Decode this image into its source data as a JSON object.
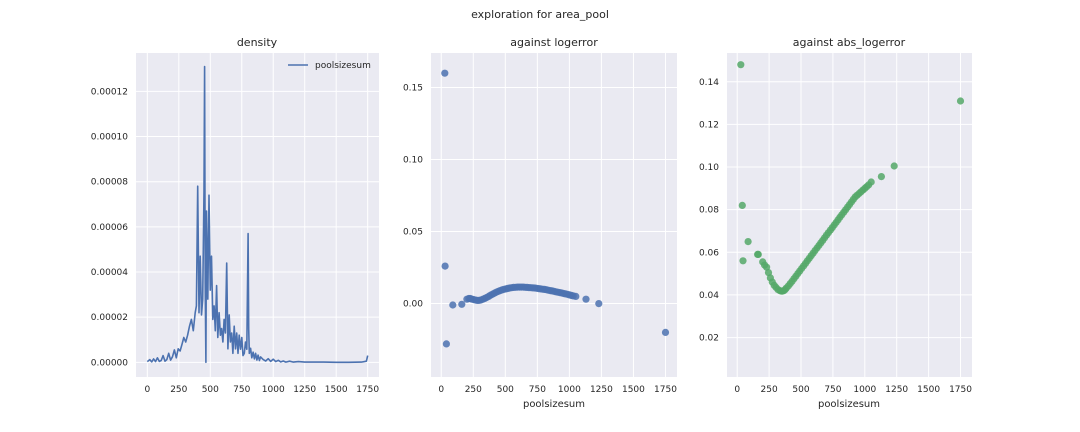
{
  "figure": {
    "suptitle": "exploration for area_pool"
  },
  "chart_data": [
    {
      "type": "line",
      "title": "density",
      "xlabel": "",
      "ylabel": "",
      "xlim": [
        -90,
        1840
      ],
      "ylim": [
        -6.5e-06,
        0.000137
      ],
      "xticks": [
        0,
        250,
        500,
        750,
        1000,
        1250,
        1500,
        1750
      ],
      "yticks": [
        0,
        2e-05,
        4e-05,
        6e-05,
        8e-05,
        0.0001,
        0.00012
      ],
      "ytick_labels": [
        "0.00000",
        "0.00002",
        "0.00004",
        "0.00006",
        "0.00008",
        "0.00010",
        "0.00012"
      ],
      "grid": true,
      "legend": "top-right",
      "series": [
        {
          "name": "poolsizesum",
          "color": "#4c72b0",
          "x": [
            0,
            20,
            35,
            50,
            65,
            80,
            95,
            110,
            125,
            140,
            155,
            170,
            185,
            200,
            215,
            230,
            245,
            260,
            275,
            290,
            305,
            320,
            335,
            350,
            365,
            380,
            390,
            400,
            410,
            420,
            430,
            440,
            450,
            455,
            460,
            465,
            470,
            480,
            490,
            500,
            510,
            520,
            530,
            540,
            550,
            560,
            570,
            580,
            590,
            600,
            610,
            620,
            630,
            640,
            650,
            660,
            670,
            680,
            690,
            700,
            710,
            720,
            730,
            740,
            750,
            760,
            770,
            780,
            790,
            800,
            805,
            810,
            820,
            830,
            840,
            850,
            860,
            870,
            880,
            890,
            900,
            920,
            940,
            960,
            980,
            1000,
            1020,
            1040,
            1060,
            1080,
            1100,
            1130,
            1160,
            1200,
            1250,
            1300,
            1400,
            1500,
            1600,
            1700,
            1740,
            1750
          ],
          "y": [
            3e-07,
            1.2e-06,
            2e-07,
            1.5e-06,
            3e-07,
            2e-06,
            4e-07,
            8e-07,
            3e-06,
            5e-07,
            1.2e-06,
            4e-06,
            1e-06,
            2.5e-06,
            5.5e-06,
            2e-06,
            6e-06,
            5e-06,
            8e-06,
            1.1e-05,
            9e-06,
            1.2e-05,
            1.6e-05,
            1.9e-05,
            1.4e-05,
            2.2e-05,
            2.5e-05,
            7.8e-05,
            2.2e-05,
            4.7e-05,
            2.1e-05,
            2.8e-05,
            7.6e-05,
            0.000131,
            3.5e-05,
            0.0,
            6.7e-05,
            2.8e-05,
            7.4e-05,
            3.2e-05,
            4.7e-05,
            1.9e-05,
            2.5e-05,
            1.4e-05,
            3.4e-05,
            1.1e-05,
            2.2e-05,
            1.2e-05,
            1.5e-05,
            9e-06,
            1.9e-05,
            1.3e-05,
            4.4e-05,
            6e-06,
            2.1e-05,
            9e-06,
            1.3e-05,
            4e-06,
            1.6e-05,
            6e-06,
            1.3e-05,
            4e-06,
            1.2e-05,
            5.8e-06,
            1.1e-05,
            3e-06,
            4e-06,
            9e-06,
            5.8e-06,
            5.7e-05,
            1.5e-05,
            4e-06,
            6.2e-06,
            2e-06,
            4.5e-06,
            1.5e-06,
            4e-06,
            1e-06,
            3.2e-06,
            8e-07,
            2.4e-06,
            1.2e-06,
            6e-07,
            1.6e-06,
            4e-07,
            1.4e-06,
            3e-07,
            9e-07,
            2e-07,
            6e-07,
            1e-07,
            5e-07,
            1e-07,
            3e-07,
            1e-07,
            1e-07,
            1e-07,
            0.0,
            0.0,
            1e-07,
            5e-07,
            3e-06
          ]
        }
      ]
    },
    {
      "type": "scatter",
      "title": "against logerror",
      "xlabel": "poolsizesum",
      "ylabel": "",
      "xlim": [
        -80,
        1840
      ],
      "ylim": [
        -0.051,
        0.174
      ],
      "xticks": [
        0,
        250,
        500,
        750,
        1000,
        1250,
        1500,
        1750
      ],
      "yticks": [
        0.0,
        0.05,
        0.1,
        0.15
      ],
      "ytick_labels": [
        "0.00",
        "0.05",
        "0.10",
        "0.15"
      ],
      "grid": true,
      "series": [
        {
          "name": "",
          "color": "#4c72b0",
          "x": [
            28,
            30,
            40,
            90,
            160,
            200,
            215,
            225,
            235,
            250,
            265,
            280,
            295,
            310,
            325,
            340,
            355,
            370,
            385,
            400,
            415,
            430,
            445,
            460,
            475,
            490,
            505,
            520,
            535,
            550,
            565,
            580,
            595,
            610,
            625,
            640,
            655,
            670,
            685,
            700,
            715,
            730,
            745,
            760,
            775,
            790,
            805,
            820,
            835,
            850,
            865,
            880,
            895,
            910,
            925,
            940,
            955,
            970,
            985,
            1000,
            1015,
            1030,
            1050,
            1130,
            1230,
            1750
          ],
          "y": [
            0.16,
            0.026,
            -0.028,
            -0.001,
            -0.0005,
            0.003,
            0.0035,
            0.0035,
            0.0032,
            0.0028,
            0.0025,
            0.0022,
            0.0022,
            0.0025,
            0.003,
            0.0036,
            0.0042,
            0.005,
            0.0058,
            0.0065,
            0.0072,
            0.0079,
            0.0085,
            0.009,
            0.0095,
            0.0099,
            0.0102,
            0.0105,
            0.0108,
            0.011,
            0.0112,
            0.0113,
            0.0114,
            0.0114,
            0.0114,
            0.0114,
            0.0113,
            0.0112,
            0.0111,
            0.011,
            0.0109,
            0.0108,
            0.0106,
            0.0104,
            0.0102,
            0.01,
            0.0098,
            0.0096,
            0.0093,
            0.009,
            0.0088,
            0.0085,
            0.0082,
            0.0079,
            0.0076,
            0.0073,
            0.007,
            0.0067,
            0.0064,
            0.006,
            0.0057,
            0.0053,
            0.005,
            0.003,
            0.0,
            -0.02
          ]
        }
      ]
    },
    {
      "type": "scatter",
      "title": "against abs_logerror",
      "xlabel": "poolsizesum",
      "ylabel": "",
      "xlim": [
        -80,
        1840
      ],
      "ylim": [
        0.0015,
        0.1535
      ],
      "xticks": [
        0,
        250,
        500,
        750,
        1000,
        1250,
        1500,
        1750
      ],
      "yticks": [
        0.02,
        0.04,
        0.06,
        0.08,
        0.1,
        0.12,
        0.14
      ],
      "ytick_labels": [
        "0.02",
        "0.04",
        "0.06",
        "0.08",
        "0.10",
        "0.12",
        "0.14"
      ],
      "grid": true,
      "series": [
        {
          "name": "",
          "color": "#55a868",
          "x": [
            28,
            40,
            45,
            85,
            160,
            165,
            200,
            215,
            230,
            245,
            260,
            275,
            290,
            305,
            320,
            335,
            345,
            355,
            365,
            375,
            385,
            400,
            415,
            430,
            445,
            460,
            475,
            490,
            505,
            520,
            535,
            550,
            565,
            580,
            595,
            610,
            625,
            640,
            655,
            670,
            685,
            700,
            715,
            730,
            745,
            760,
            775,
            790,
            805,
            820,
            835,
            850,
            865,
            880,
            895,
            910,
            925,
            940,
            955,
            970,
            985,
            1000,
            1015,
            1030,
            1050,
            1130,
            1230,
            1750
          ],
          "y": [
            0.148,
            0.082,
            0.056,
            0.065,
            0.059,
            0.059,
            0.0555,
            0.054,
            0.053,
            0.0505,
            0.048,
            0.046,
            0.0445,
            0.0435,
            0.0425,
            0.042,
            0.0418,
            0.0418,
            0.042,
            0.0425,
            0.0432,
            0.0442,
            0.0453,
            0.0464,
            0.0476,
            0.0488,
            0.05,
            0.0512,
            0.0524,
            0.0536,
            0.0548,
            0.056,
            0.0572,
            0.0584,
            0.0596,
            0.0608,
            0.062,
            0.0632,
            0.0644,
            0.0656,
            0.0668,
            0.068,
            0.0692,
            0.0704,
            0.0716,
            0.0728,
            0.074,
            0.0752,
            0.0764,
            0.0776,
            0.0788,
            0.08,
            0.0812,
            0.0824,
            0.0836,
            0.0848,
            0.086,
            0.0868,
            0.0876,
            0.0884,
            0.0892,
            0.09,
            0.0908,
            0.0916,
            0.093,
            0.0955,
            0.1005,
            0.131
          ]
        }
      ]
    }
  ]
}
